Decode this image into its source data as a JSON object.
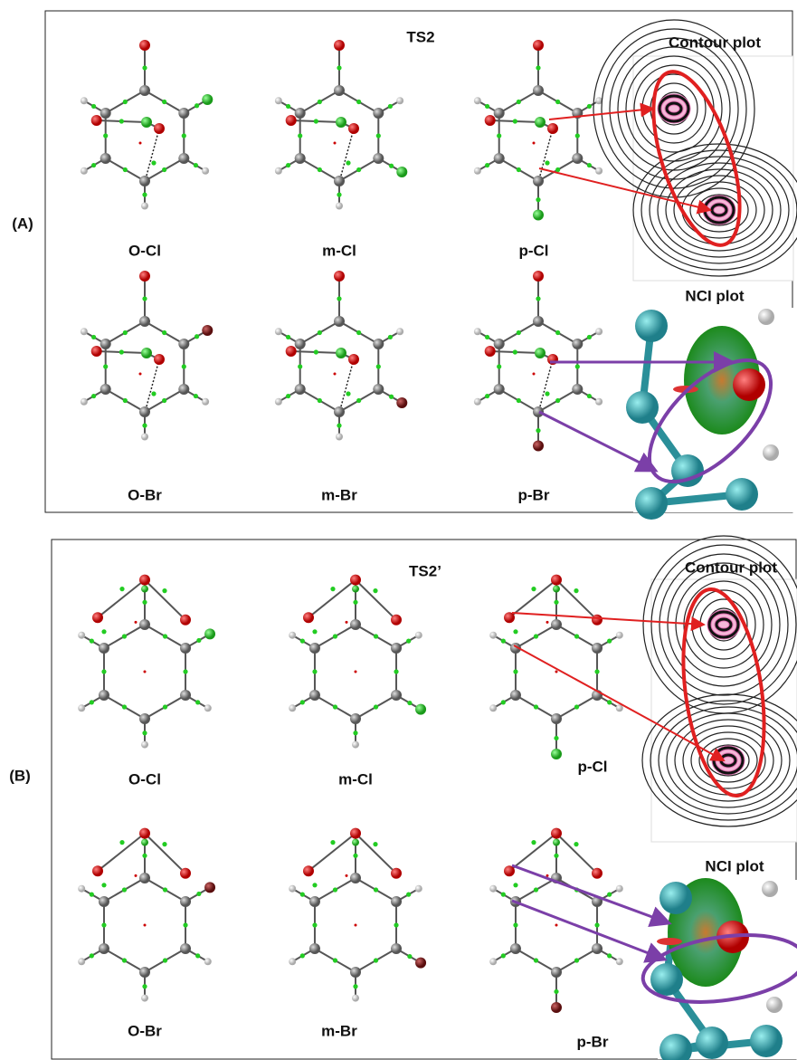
{
  "panel_a": {
    "label": "(A)",
    "title": "TS2",
    "molecules": [
      "O-Cl",
      "m-Cl",
      "p-Cl",
      "O-Br",
      "m-Br",
      "p-Br"
    ],
    "insets": [
      "Contour plot",
      "NCI plot"
    ]
  },
  "panel_b": {
    "label": "(B)",
    "title": "TS2’",
    "molecules": [
      "O-Cl",
      "m-Cl",
      "p-Cl",
      "O-Br",
      "m-Br",
      "p-Br"
    ],
    "insets": [
      "Contour plot",
      "NCI plot"
    ]
  }
}
